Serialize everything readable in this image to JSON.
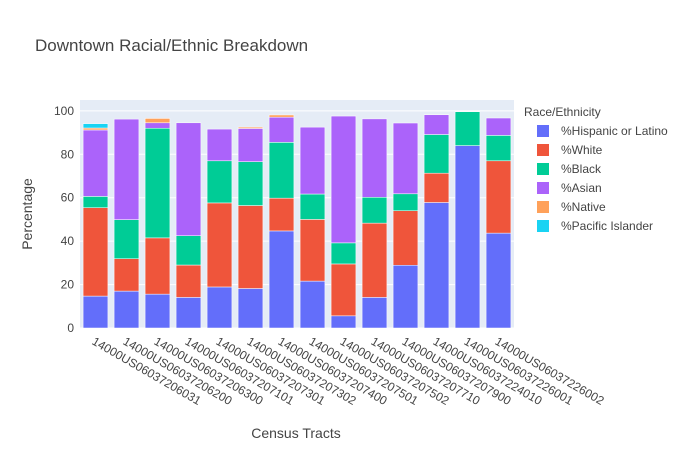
{
  "chart_data": {
    "type": "bar",
    "barmode": "stack",
    "title": "Downtown Racial/Ethnic Breakdown",
    "xlabel": "Census Tracts",
    "ylabel": "Percentage",
    "ylim": [
      0,
      105
    ],
    "yticks": [
      0,
      20,
      40,
      60,
      80,
      100
    ],
    "grid": true,
    "legend_title": "Race/Ethnicity",
    "legend_position": "right",
    "categories": [
      "14000US06037206031",
      "14000US06037206200",
      "14000US06037206300",
      "14000US06037207101",
      "14000US06037207301",
      "14000US06037207302",
      "14000US06037207400",
      "14000US06037207501",
      "14000US06037207502",
      "14000US06037207710",
      "14000US06037207900",
      "14000US06037224010",
      "14000US06037226001",
      "14000US06037226002"
    ],
    "series": [
      {
        "name": "%Hispanic or Latino",
        "color": "#636efa",
        "values": [
          14.7,
          17.0,
          15.6,
          14.1,
          18.9,
          18.2,
          44.7,
          21.6,
          5.6,
          14.1,
          28.9,
          57.8,
          84.0,
          43.7
        ]
      },
      {
        "name": "%White",
        "color": "#ef553b",
        "values": [
          40.7,
          14.9,
          25.9,
          14.9,
          38.7,
          38.2,
          15.1,
          28.4,
          23.9,
          34.2,
          25.1,
          13.5,
          0.0,
          33.3
        ]
      },
      {
        "name": "%Black",
        "color": "#00cc96",
        "values": [
          5.2,
          18.0,
          50.5,
          13.5,
          19.4,
          20.2,
          25.7,
          11.7,
          9.7,
          11.9,
          7.8,
          17.8,
          15.6,
          11.7
        ]
      },
      {
        "name": "%Asian",
        "color": "#ab63fa",
        "values": [
          30.6,
          46.3,
          2.5,
          52.0,
          14.6,
          15.3,
          11.6,
          30.8,
          58.4,
          36.1,
          32.6,
          9.1,
          0.0,
          8.0
        ]
      },
      {
        "name": "%Native",
        "color": "#ffa15a",
        "values": [
          0.9,
          0.0,
          2.0,
          0.0,
          0.0,
          0.6,
          1.0,
          0.0,
          0.0,
          0.0,
          0.0,
          0.0,
          0.0,
          0.0
        ]
      },
      {
        "name": "%Pacific Islander",
        "color": "#19d3f3",
        "values": [
          2.0,
          0.0,
          0.0,
          0.0,
          0.0,
          0.0,
          0.0,
          0.0,
          0.0,
          0.0,
          0.0,
          0.0,
          0.0,
          0.0
        ]
      }
    ]
  }
}
